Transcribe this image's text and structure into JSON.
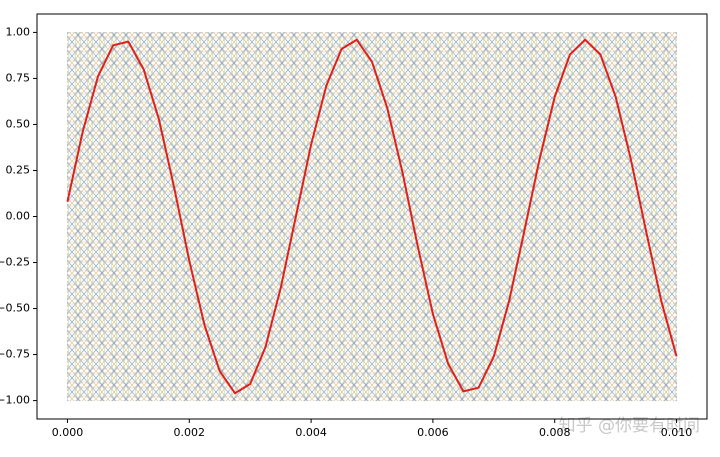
{
  "chart_data": {
    "type": "line",
    "x": [
      0,
      0.00025,
      0.0005,
      0.00075,
      0.001,
      0.00125,
      0.0015,
      0.00175,
      0.002,
      0.00225,
      0.0025,
      0.00275,
      0.003,
      0.00325,
      0.0035,
      0.00375,
      0.004,
      0.00425,
      0.0045,
      0.00475,
      0.005,
      0.00525,
      0.0055,
      0.00575,
      0.006,
      0.00625,
      0.0065,
      0.00675,
      0.007,
      0.00725,
      0.0075,
      0.00775,
      0.008,
      0.00825,
      0.0085,
      0.00875,
      0.009,
      0.00925,
      0.0095,
      0.00975,
      0.01
    ],
    "series": [
      {
        "color": "#e0201b",
        "values": [
          0.08,
          0.46,
          0.76,
          0.93,
          0.95,
          0.8,
          0.53,
          0.16,
          -0.24,
          -0.59,
          -0.84,
          -0.96,
          -0.91,
          -0.71,
          -0.39,
          0,
          0.39,
          0.71,
          0.91,
          0.96,
          0.84,
          0.59,
          0.24,
          -0.16,
          -0.53,
          -0.8,
          -0.95,
          -0.93,
          -0.76,
          -0.46,
          -0.08,
          0.31,
          0.65,
          0.88,
          0.96,
          0.88,
          0.65,
          0.31,
          -0.08,
          -0.46,
          -0.76
        ]
      }
    ],
    "xlim": [
      -0.0005,
      0.0105
    ],
    "ylim": [
      -1.1,
      1.1
    ],
    "xticks": [
      {
        "value": 0,
        "label": "0.000"
      },
      {
        "value": 0.002,
        "label": "0.002"
      },
      {
        "value": 0.004,
        "label": "0.004"
      },
      {
        "value": 0.006,
        "label": "0.006"
      },
      {
        "value": 0.008,
        "label": "0.008"
      },
      {
        "value": 0.01,
        "label": "0.010"
      }
    ],
    "yticks": [
      {
        "value": 1,
        "label": "1.00"
      },
      {
        "value": 0.75,
        "label": "0.75"
      },
      {
        "value": 0.5,
        "label": "0.50"
      },
      {
        "value": 0.25,
        "label": "0.25"
      },
      {
        "value": 0,
        "label": "0.00"
      },
      {
        "value": -0.25,
        "label": "−0.25"
      },
      {
        "value": -0.5,
        "label": "−0.50"
      },
      {
        "value": -0.75,
        "label": "−0.75"
      },
      {
        "value": -1,
        "label": "−1.00"
      }
    ],
    "watermark": "知乎 @你要有时间"
  }
}
